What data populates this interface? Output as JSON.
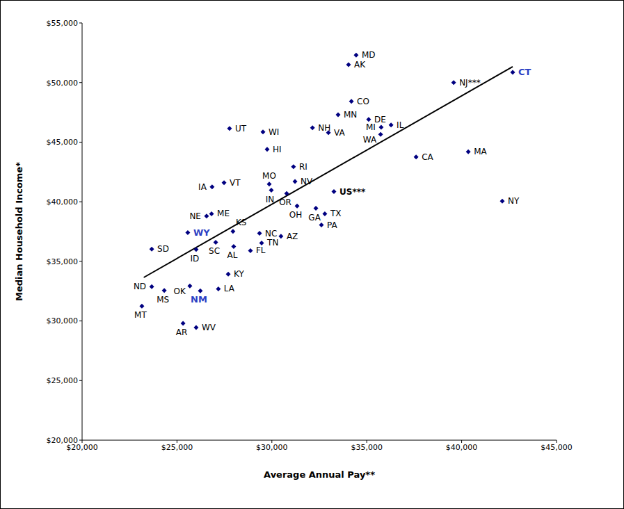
{
  "chart_data": {
    "type": "scatter",
    "xlabel": "Average Annual Pay**",
    "ylabel": "Median Household Income*",
    "labels": [
      "MD",
      "AK",
      "CT",
      "NJ***",
      "CO",
      "MN",
      "DE",
      "IL",
      "MI",
      "UT",
      "NH",
      "WI",
      "VA",
      "WA",
      "HI",
      "MA",
      "CA",
      "RI",
      "NV",
      "VT",
      "IA",
      "MO",
      "IN",
      "OR",
      "US***",
      "NY",
      "OH",
      "GA",
      "TX",
      "NE",
      "ME",
      "KS",
      "PA",
      "WY",
      "NC",
      "AZ",
      "SC",
      "ID",
      "SD",
      "AL",
      "TN",
      "FL",
      "KY",
      "ND",
      "MS",
      "OK",
      "NM",
      "LA",
      "MT",
      "AR",
      "WV"
    ],
    "x": [
      34440,
      34040,
      42690,
      39580,
      34190,
      33490,
      35100,
      36280,
      35760,
      27770,
      32140,
      29530,
      32980,
      35730,
      29750,
      40350,
      37600,
      31140,
      31220,
      27480,
      26850,
      29860,
      29970,
      30780,
      33270,
      42140,
      31330,
      32320,
      32790,
      26560,
      26820,
      27950,
      32610,
      25570,
      29350,
      30480,
      27040,
      26010,
      23670,
      27990,
      29460,
      28870,
      27700,
      23670,
      24330,
      25680,
      26230,
      27180,
      23150,
      25320,
      26010
    ],
    "values": [
      52300,
      51500,
      50860,
      50000,
      48420,
      47300,
      46900,
      46440,
      46250,
      46150,
      46200,
      45850,
      45800,
      45650,
      44400,
      44200,
      43750,
      42940,
      41700,
      41600,
      41250,
      41480,
      40970,
      40700,
      40850,
      40050,
      39650,
      39450,
      38990,
      38800,
      38990,
      37520,
      38050,
      37410,
      37350,
      37100,
      36600,
      36000,
      36030,
      36250,
      36540,
      35900,
      33920,
      32880,
      32550,
      32930,
      32520,
      32690,
      31250,
      29800,
      29450
    ],
    "color": "#000080",
    "marker": "diamond",
    "trendline": {
      "x": [
        23250,
        42690
      ],
      "y": [
        33650,
        51330
      ]
    },
    "xlim": [
      20000,
      45000
    ],
    "xticks": [
      {
        "value": 20000,
        "label": "$20,000"
      },
      {
        "value": 25000,
        "label": "$25,000"
      },
      {
        "value": 30000,
        "label": "$30,000"
      },
      {
        "value": 35000,
        "label": "$35,000"
      },
      {
        "value": 40000,
        "label": "$40,000"
      },
      {
        "value": 45000,
        "label": "$45,000"
      }
    ],
    "ylim": [
      20000,
      55000
    ],
    "yticks": [
      {
        "value": 20000,
        "label": "$20,000"
      },
      {
        "value": 25000,
        "label": "$25,000"
      },
      {
        "value": 30000,
        "label": "$30,000"
      },
      {
        "value": 35000,
        "label": "$35,000"
      },
      {
        "value": 40000,
        "label": "$40,000"
      },
      {
        "value": 45000,
        "label": "$45,000"
      },
      {
        "value": 50000,
        "label": "$50,000"
      },
      {
        "value": 55000,
        "label": "$55,000"
      }
    ],
    "grid": false
  }
}
